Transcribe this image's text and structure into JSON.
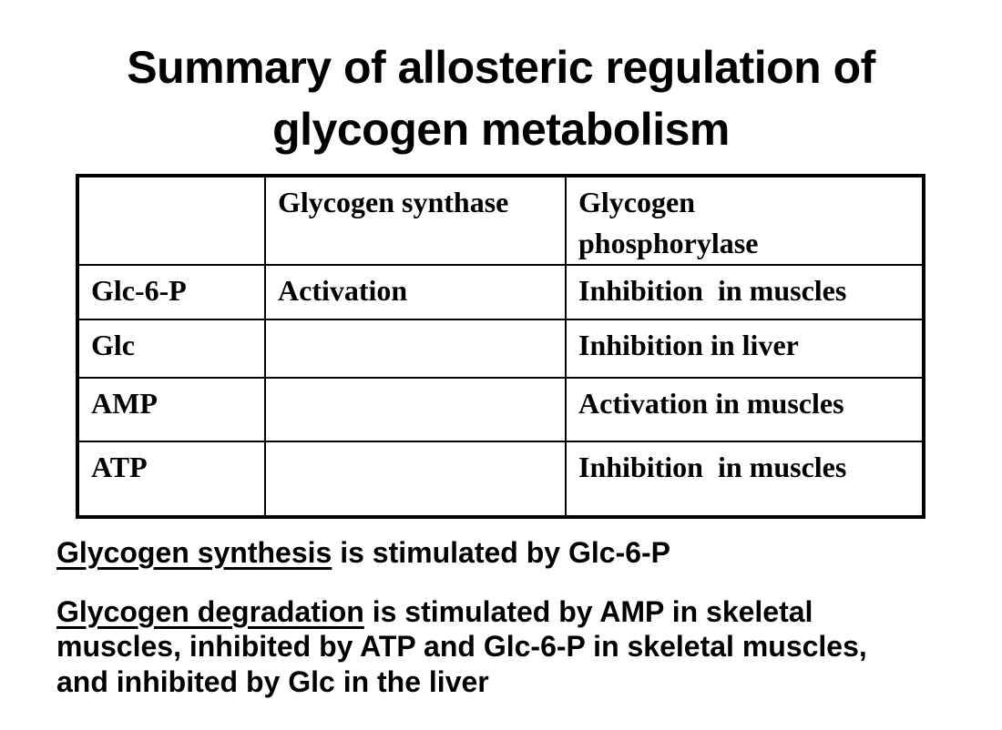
{
  "title": "Summary of allosteric regulation of\nglycogen metabolism",
  "table": {
    "headers": [
      "",
      "Glycogen synthase",
      "Glycogen\nphosphorylase"
    ],
    "rows": [
      [
        "Glc-6-P",
        "Activation",
        "Inhibition  in muscles"
      ],
      [
        "Glc",
        "",
        "Inhibition in liver"
      ],
      [
        "AMP",
        "",
        "Activation in muscles"
      ],
      [
        "ATP",
        "",
        "Inhibition  in muscles"
      ]
    ]
  },
  "notes": [
    {
      "underlined": "Glycogen synthesis",
      "rest": " is stimulated by Glc-6-P"
    },
    {
      "underlined": "Glycogen degradation",
      "rest": " is stimulated by AMP in skeletal muscles, inhibited by ATP and Glc-6-P in skeletal muscles, and inhibited by Glc in the liver"
    }
  ],
  "colors": {
    "background": "#ffffff",
    "text": "#000000",
    "table_border": "#000000"
  }
}
